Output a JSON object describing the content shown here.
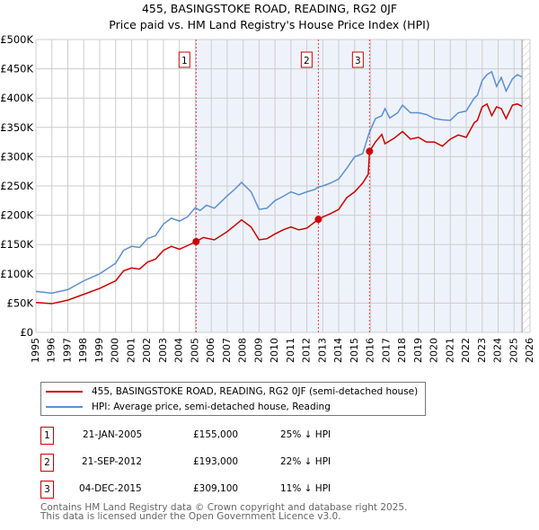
{
  "chart_data": {
    "type": "line",
    "title": "455, BASINGSTOKE ROAD, READING, RG2 0JF",
    "subtitle": "Price paid vs. HM Land Registry's House Price Index (HPI)",
    "xlim": [
      1995,
      2026
    ],
    "ylim": [
      0,
      500000
    ],
    "x_ticks": [
      1995,
      1996,
      1997,
      1998,
      1999,
      2000,
      2001,
      2002,
      2003,
      2004,
      2005,
      2006,
      2007,
      2008,
      2009,
      2010,
      2011,
      2012,
      2013,
      2014,
      2015,
      2016,
      2017,
      2018,
      2019,
      2020,
      2021,
      2022,
      2023,
      2024,
      2025,
      2026
    ],
    "y_ticks": [
      {
        "v": 0,
        "label": "£0"
      },
      {
        "v": 50000,
        "label": "£50K"
      },
      {
        "v": 100000,
        "label": "£100K"
      },
      {
        "v": 150000,
        "label": "£150K"
      },
      {
        "v": 200000,
        "label": "£200K"
      },
      {
        "v": 250000,
        "label": "£250K"
      },
      {
        "v": 300000,
        "label": "£300K"
      },
      {
        "v": 350000,
        "label": "£350K"
      },
      {
        "v": 400000,
        "label": "£400K"
      },
      {
        "v": 450000,
        "label": "£450K"
      },
      {
        "v": 500000,
        "label": "£500K"
      }
    ],
    "grid": true,
    "shade_from": 2005.05,
    "hatch_from": 2025.5,
    "series": [
      {
        "name": "455, BASINGSTOKE ROAD, READING, RG2 0JF (semi-detached house)",
        "color": "#cc0000",
        "x": [
          1995,
          1996,
          1997,
          1998,
          1999,
          2000,
          2000.5,
          2001,
          2001.5,
          2002,
          2002.5,
          2003,
          2003.5,
          2004,
          2004.5,
          2005.05,
          2005.5,
          2006.2,
          2007,
          2007.5,
          2007.9,
          2008.5,
          2009,
          2009.5,
          2010,
          2010.5,
          2011,
          2011.5,
          2012,
          2012.72,
          2013,
          2013.5,
          2014,
          2014.5,
          2015,
          2015.5,
          2015.85,
          2015.93,
          2016.3,
          2016.7,
          2016.9,
          2017.5,
          2018,
          2018.5,
          2019,
          2019.5,
          2020,
          2020.5,
          2021,
          2021.5,
          2022,
          2022.5,
          2022.7,
          2023,
          2023.3,
          2023.6,
          2023.9,
          2024.2,
          2024.5,
          2024.9,
          2025.2,
          2025.5
        ],
        "y": [
          51000,
          49000,
          55000,
          65000,
          75000,
          88000,
          105000,
          110000,
          108000,
          120000,
          125000,
          140000,
          147000,
          142000,
          148000,
          155000,
          162000,
          158000,
          172000,
          183000,
          192000,
          180000,
          158000,
          160000,
          168000,
          175000,
          180000,
          175000,
          178000,
          193000,
          197000,
          203000,
          210000,
          230000,
          240000,
          255000,
          270000,
          309100,
          325000,
          338000,
          322000,
          332000,
          343000,
          330000,
          333000,
          325000,
          325000,
          318000,
          330000,
          337000,
          333000,
          358000,
          362000,
          385000,
          390000,
          370000,
          385000,
          382000,
          365000,
          388000,
          390000,
          386000
        ]
      },
      {
        "name": "HPI: Average price, semi-detached house, Reading",
        "color": "#5b8fd0",
        "x": [
          1995,
          1996,
          1997,
          1998,
          1999,
          2000,
          2000.5,
          2001,
          2001.5,
          2002,
          2002.5,
          2003,
          2003.5,
          2004,
          2004.5,
          2005,
          2005.3,
          2005.7,
          2006.2,
          2007,
          2007.5,
          2007.9,
          2008.5,
          2009,
          2009.5,
          2010,
          2010.5,
          2011,
          2011.5,
          2012,
          2012.5,
          2012.7,
          2013,
          2013.5,
          2014,
          2014.5,
          2015,
          2015.5,
          2015.9,
          2016.3,
          2016.7,
          2016.9,
          2017.2,
          2017.7,
          2018,
          2018.5,
          2019,
          2019.5,
          2020,
          2020.5,
          2021,
          2021.5,
          2022,
          2022.5,
          2022.7,
          2023,
          2023.3,
          2023.6,
          2023.9,
          2024.2,
          2024.5,
          2024.9,
          2025.2,
          2025.5
        ],
        "y": [
          70000,
          67000,
          73000,
          88000,
          100000,
          118000,
          140000,
          147000,
          145000,
          160000,
          165000,
          185000,
          195000,
          190000,
          197000,
          213000,
          208000,
          217000,
          212000,
          233000,
          245000,
          256000,
          240000,
          210000,
          212000,
          225000,
          232000,
          240000,
          235000,
          240000,
          244000,
          248000,
          250000,
          255000,
          262000,
          280000,
          300000,
          305000,
          340000,
          365000,
          370000,
          382000,
          366000,
          375000,
          388000,
          375000,
          375000,
          372000,
          365000,
          363000,
          362000,
          375000,
          378000,
          400000,
          405000,
          430000,
          440000,
          445000,
          420000,
          435000,
          412000,
          433000,
          440000,
          436000
        ]
      }
    ],
    "sales": [
      {
        "n": "1",
        "x": 2005.05,
        "price": 155000,
        "date": "21-JAN-2005",
        "price_label": "£155,000",
        "hpi": "25% ↓ HPI"
      },
      {
        "n": "2",
        "x": 2012.72,
        "price": 193000,
        "date": "21-SEP-2012",
        "price_label": "£193,000",
        "hpi": "22% ↓ HPI"
      },
      {
        "n": "3",
        "x": 2015.93,
        "price": 309100,
        "date": "04-DEC-2015",
        "price_label": "£309,100",
        "hpi": "11% ↓ HPI"
      }
    ]
  },
  "footer": {
    "line1": "Contains HM Land Registry data © Crown copyright and database right 2025.",
    "line2": "This data is licensed under the Open Government Licence v3.0."
  }
}
